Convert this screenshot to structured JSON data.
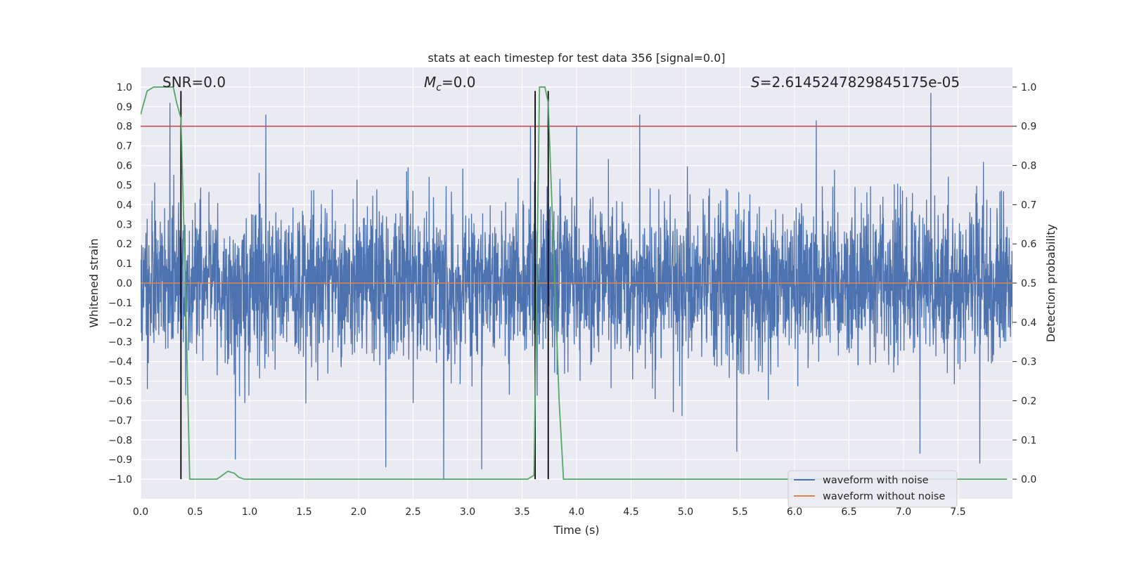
{
  "chart_data": {
    "type": "line",
    "title": "stats at each timestep for test data 356 [signal=0.0]",
    "xlabel": "Time (s)",
    "ylabel": "Whitened strain",
    "y2label": "Detection probability",
    "xlim": [
      0.0,
      8.0
    ],
    "ylim": [
      -1.1,
      1.1
    ],
    "y2lim": [
      -0.05,
      1.05
    ],
    "x_ticks": [
      0.0,
      0.5,
      1.0,
      1.5,
      2.0,
      2.5,
      3.0,
      3.5,
      4.0,
      4.5,
      5.0,
      5.5,
      6.0,
      6.5,
      7.0,
      7.5
    ],
    "x_tick_labels": [
      "0.0",
      "0.5",
      "1.0",
      "1.5",
      "2.0",
      "2.5",
      "3.0",
      "3.5",
      "4.0",
      "4.5",
      "5.0",
      "5.5",
      "6.0",
      "6.5",
      "7.0",
      "7.5"
    ],
    "y_ticks": [
      -1.0,
      -0.9,
      -0.8,
      -0.7,
      -0.6,
      -0.5,
      -0.4,
      -0.3,
      -0.2,
      -0.1,
      0.0,
      0.1,
      0.2,
      0.3,
      0.4,
      0.5,
      0.6,
      0.7,
      0.8,
      0.9,
      1.0
    ],
    "y_tick_labels": [
      "−1.0",
      "−0.9",
      "−0.8",
      "−0.7",
      "−0.6",
      "−0.5",
      "−0.4",
      "−0.3",
      "−0.2",
      "−0.1",
      "0.0",
      "0.1",
      "0.2",
      "0.3",
      "0.4",
      "0.5",
      "0.6",
      "0.7",
      "0.8",
      "0.9",
      "1.0"
    ],
    "y2_ticks": [
      0.0,
      0.1,
      0.2,
      0.3,
      0.4,
      0.5,
      0.6,
      0.7,
      0.8,
      0.9,
      1.0
    ],
    "y2_tick_labels": [
      "0.0",
      "0.1",
      "0.2",
      "0.3",
      "0.4",
      "0.5",
      "0.6",
      "0.7",
      "0.8",
      "0.9",
      "1.0"
    ],
    "grid": true,
    "legend_position": "lower-right",
    "series": [
      {
        "name": "waveform with noise",
        "axis": "left",
        "color": "#4c72b0",
        "style": "dense noise",
        "typical_envelope": [
          -0.42,
          0.42
        ],
        "notable_peaks": [
          {
            "x": 0.27,
            "y": 0.92
          },
          {
            "x": 1.15,
            "y": 0.86
          },
          {
            "x": 4.58,
            "y": 0.86
          },
          {
            "x": 7.25,
            "y": 0.97
          },
          {
            "x": 6.2,
            "y": 0.83
          },
          {
            "x": 4.0,
            "y": 0.8
          }
        ],
        "notable_troughs": [
          {
            "x": 0.87,
            "y": -0.9
          },
          {
            "x": 2.78,
            "y": -1.0
          },
          {
            "x": 3.13,
            "y": -0.95
          },
          {
            "x": 5.47,
            "y": -0.86
          },
          {
            "x": 7.15,
            "y": -0.87
          },
          {
            "x": 7.7,
            "y": -0.92
          },
          {
            "x": 2.25,
            "y": -0.94
          }
        ]
      },
      {
        "name": "waveform without noise",
        "axis": "left",
        "color": "#dd8452",
        "x": [
          0.0,
          8.0
        ],
        "y": [
          0.0,
          0.0
        ]
      },
      {
        "name": "detection probability",
        "axis": "right",
        "color": "#55a868",
        "x": [
          0.0,
          0.06,
          0.12,
          0.2,
          0.3,
          0.33,
          0.37,
          0.41,
          0.45,
          0.55,
          0.7,
          0.75,
          0.8,
          0.86,
          0.9,
          0.95,
          1.5,
          2.5,
          3.5,
          3.55,
          3.61,
          3.66,
          3.71,
          3.74,
          3.8,
          3.84,
          3.88,
          5.0,
          6.5,
          7.95
        ],
        "y": [
          0.93,
          0.99,
          1.0,
          1.0,
          1.0,
          0.96,
          0.92,
          0.5,
          0.0,
          0.0,
          0.0,
          0.01,
          0.02,
          0.015,
          0.005,
          0.0,
          0.0,
          0.0,
          0.0,
          0.0,
          0.01,
          1.0,
          1.0,
          0.96,
          0.5,
          0.2,
          0.0,
          0.0,
          0.0,
          0.0
        ]
      }
    ],
    "threshold_line": {
      "axis": "right",
      "value": 0.9,
      "color": "#c44e52"
    },
    "vertical_markers": [
      {
        "x": 0.37,
        "y_from": -1.0,
        "y_to": 0.98
      },
      {
        "x": 3.62,
        "y_from": -1.0,
        "y_to": 0.98
      },
      {
        "x": 3.74,
        "y_from": -1.0,
        "y_to": 0.98
      }
    ],
    "annotations": {
      "snr": "SNR=0.0",
      "mc_symbol": "M",
      "mc_subscript": "c",
      "mc_value": "=0.0",
      "s_symbol": "S",
      "s_value": "=2.6145247829845175e-05"
    },
    "legend": {
      "entries": [
        {
          "label": "waveform with noise",
          "color": "#4c72b0"
        },
        {
          "label": "waveform without noise",
          "color": "#dd8452"
        }
      ]
    }
  }
}
